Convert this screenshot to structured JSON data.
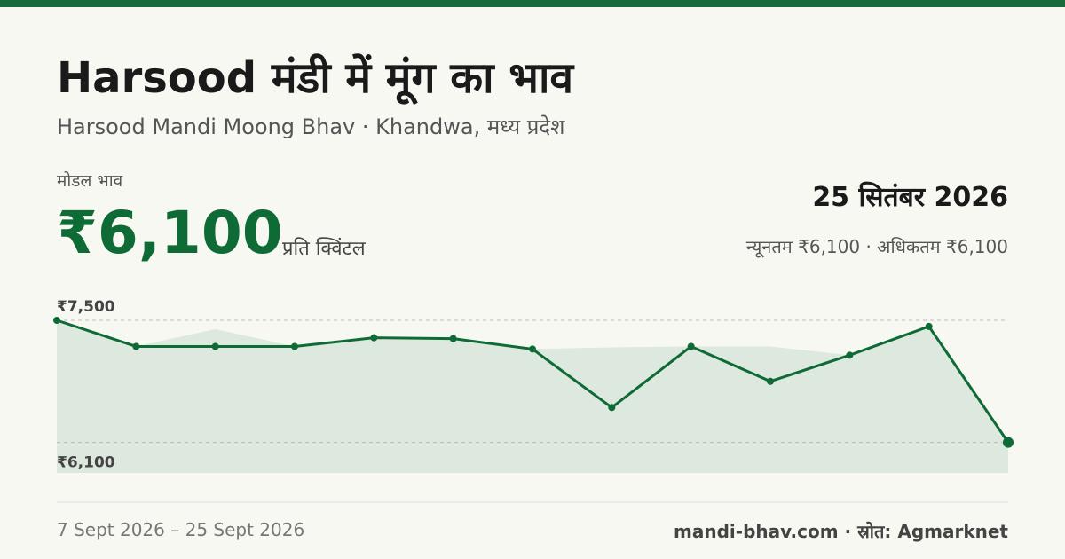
{
  "header": {
    "title": "Harsood मंडी में मूंग का भाव",
    "subtitle": "Harsood Mandi Moong Bhav · Khandwa, मध्य प्रदेश"
  },
  "price": {
    "label": "मोडल भाव",
    "value": "₹6,100",
    "unit": "प्रति क्विंटल",
    "date": "25 सितंबर 2026",
    "range": "न्यूनतम ₹6,100 · अधिकतम ₹6,100"
  },
  "chart_data": {
    "type": "line",
    "categories": [
      null,
      null,
      null,
      null,
      null,
      null,
      null,
      null,
      null,
      null,
      null,
      null,
      null
    ],
    "series": [
      {
        "type": "area",
        "color": "#dde8df",
        "values": [
          7500,
          7200,
          7400,
          7200,
          7300,
          7290,
          7170,
          7190,
          7200,
          7200,
          7100,
          7430,
          6100
        ]
      },
      {
        "type": "line",
        "color": "#0f6b36",
        "values": [
          7500,
          7200,
          7200,
          7200,
          7300,
          7290,
          7170,
          6500,
          7200,
          6800,
          7100,
          7430,
          6100
        ]
      }
    ],
    "ylim": [
      5750,
      7500
    ],
    "yticks": [
      {
        "value": 6100,
        "label": "₹6,100"
      },
      {
        "value": 7500,
        "label": "₹7,500"
      }
    ],
    "grid": true
  },
  "footer": {
    "period": "7 Sept 2026 – 25 Sept 2026",
    "source": "mandi-bhav.com · स्रोत: Agmarknet"
  }
}
